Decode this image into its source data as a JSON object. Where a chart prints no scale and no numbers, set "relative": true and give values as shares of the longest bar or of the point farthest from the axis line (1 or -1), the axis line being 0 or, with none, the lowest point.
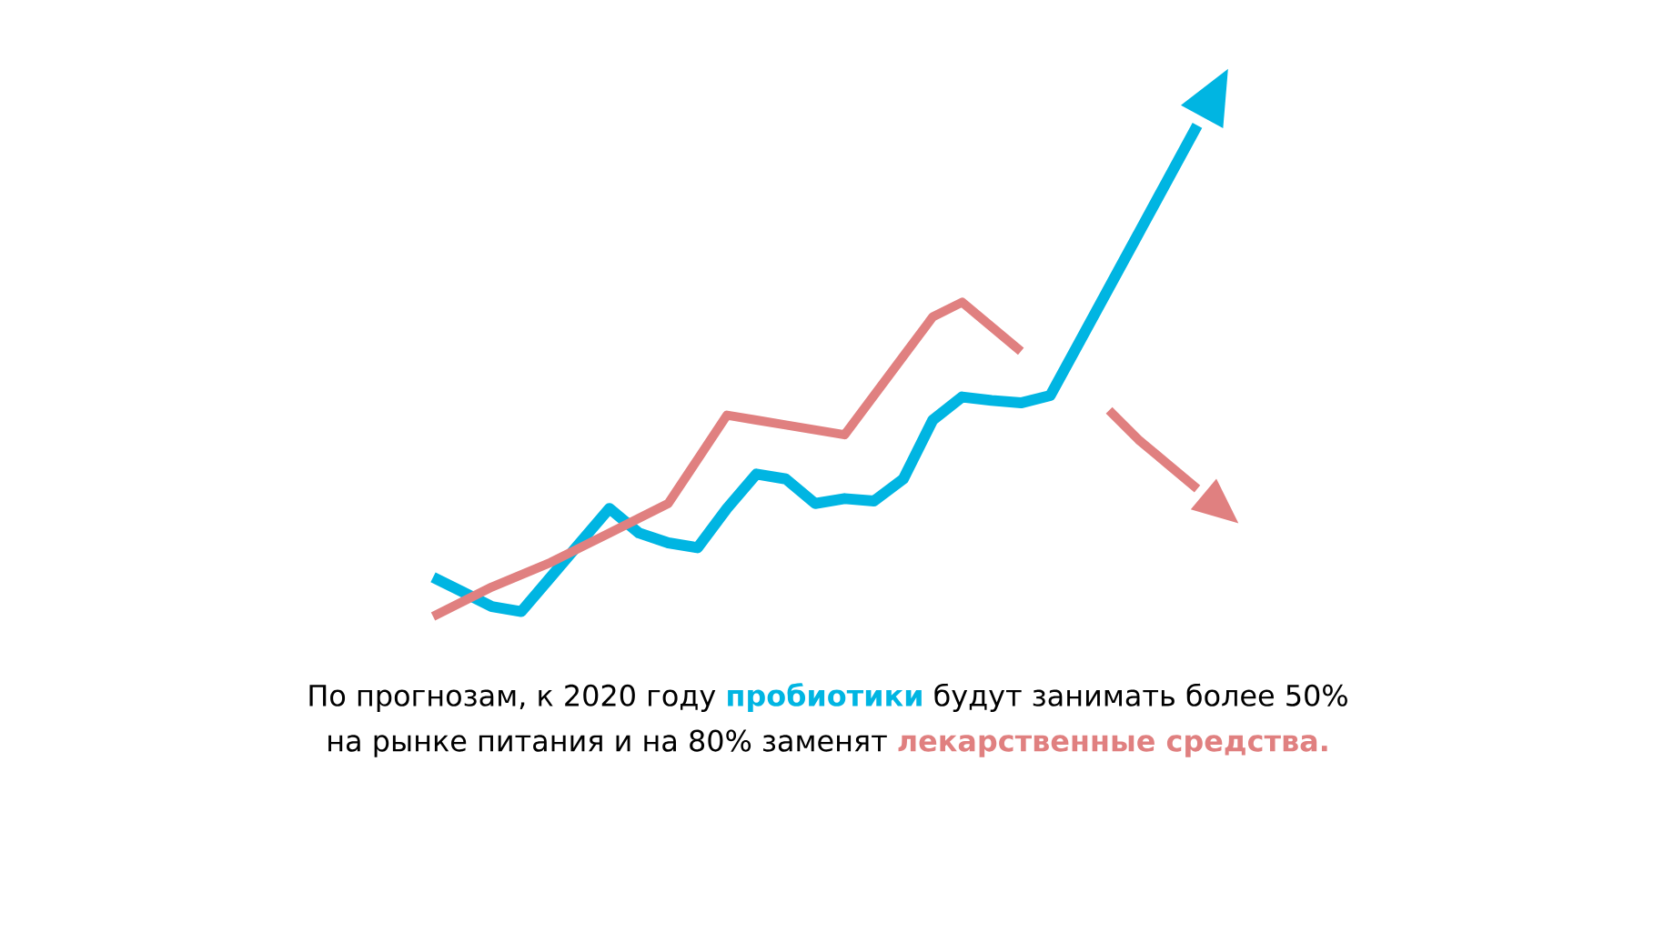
{
  "chart_data": {
    "type": "line",
    "relative": true,
    "marker": "none",
    "line_style": "solid",
    "categories": [
      null,
      null,
      null,
      null,
      null,
      null,
      null,
      null,
      null,
      null,
      null,
      null,
      null,
      null,
      null,
      null,
      null,
      null,
      null,
      null,
      null,
      null,
      null,
      null,
      null,
      null,
      null
    ],
    "annotations": [
      "По прогнозам, к 2020 году",
      "будут занимать более 50%",
      "на рынке питания и на 80% заменят"
    ],
    "series": [
      {
        "name": "пробиотики",
        "color": "#00b5e2",
        "values": [
          0.08,
          0.05,
          0.02,
          0.01,
          0.08,
          0.15,
          0.22,
          0.17,
          0.15,
          0.14,
          0.22,
          0.29,
          0.28,
          0.23,
          0.24,
          0.235,
          0.28,
          0.4,
          0.447,
          0.44,
          0.435,
          0.45,
          0.56,
          0.67,
          0.78,
          0.89,
          1.0
        ]
      },
      {
        "name": "лекарственные средства.",
        "color": "#e08080",
        "values": [
          0,
          0.03,
          0.06,
          0.085,
          0.11,
          0.14,
          0.17,
          0.2,
          0.23,
          0.32,
          0.41,
          0.4,
          0.39,
          0.38,
          0.37,
          0.45,
          0.53,
          0.61,
          0.64,
          0.59,
          0.54,
          null,
          null,
          0.42,
          0.36,
          0.31,
          0.26
        ]
      }
    ]
  }
}
